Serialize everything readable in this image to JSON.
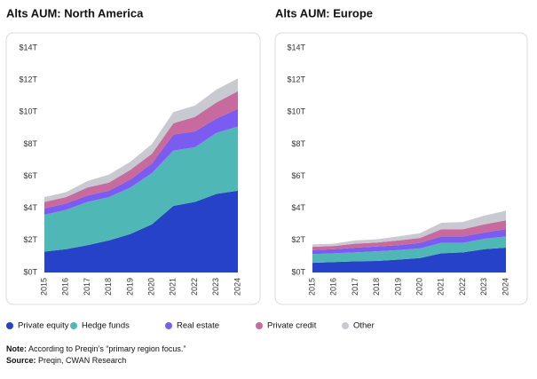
{
  "chart_data": [
    {
      "type": "stacked-area",
      "title": "Alts AUM: North America",
      "categories": [
        "2015",
        "2016",
        "2017",
        "2018",
        "2019",
        "2020",
        "2021",
        "2022",
        "2023",
        "2024"
      ],
      "ylim": [
        0,
        14
      ],
      "yticks": [
        {
          "value": 0,
          "label": "$0T"
        },
        {
          "value": 2,
          "label": "$2T"
        },
        {
          "value": 4,
          "label": "$4T"
        },
        {
          "value": 6,
          "label": "$6T"
        },
        {
          "value": 8,
          "label": "$8T"
        },
        {
          "value": 10,
          "label": "$10T"
        },
        {
          "value": 12,
          "label": "$12T"
        },
        {
          "value": 14,
          "label": "$14T"
        }
      ],
      "series": [
        {
          "name": "Private equity",
          "color": "#2542c8",
          "values": [
            1.3,
            1.45,
            1.7,
            2.0,
            2.4,
            3.0,
            4.15,
            4.4,
            4.9,
            5.1
          ]
        },
        {
          "name": "Hedge funds",
          "color": "#4fb8b6",
          "values": [
            2.3,
            2.45,
            2.7,
            2.7,
            2.9,
            3.2,
            3.45,
            3.4,
            3.8,
            4.0
          ]
        },
        {
          "name": "Real estate",
          "color": "#7b5cf0",
          "values": [
            0.4,
            0.4,
            0.4,
            0.4,
            0.5,
            0.6,
            1.0,
            1.0,
            0.9,
            1.1
          ]
        },
        {
          "name": "Private credit",
          "color": "#c86a9e",
          "values": [
            0.4,
            0.4,
            0.5,
            0.5,
            0.6,
            0.6,
            0.7,
            0.9,
            1.0,
            1.1
          ]
        },
        {
          "name": "Other",
          "color": "#c9c9d1",
          "values": [
            0.3,
            0.3,
            0.4,
            0.5,
            0.5,
            0.6,
            0.7,
            0.7,
            0.8,
            0.8
          ]
        }
      ]
    },
    {
      "type": "stacked-area",
      "title": "Alts AUM: Europe",
      "categories": [
        "2015",
        "2016",
        "2017",
        "2018",
        "2019",
        "2020",
        "2021",
        "2022",
        "2023",
        "2024"
      ],
      "ylim": [
        0,
        14
      ],
      "yticks": [
        {
          "value": 0,
          "label": "$0T"
        },
        {
          "value": 2,
          "label": "$2T"
        },
        {
          "value": 4,
          "label": "$4T"
        },
        {
          "value": 6,
          "label": "$6T"
        },
        {
          "value": 8,
          "label": "$8T"
        },
        {
          "value": 10,
          "label": "$10T"
        },
        {
          "value": 12,
          "label": "$12T"
        },
        {
          "value": 14,
          "label": "$14T"
        }
      ],
      "series": [
        {
          "name": "Private equity",
          "color": "#2542c8",
          "values": [
            0.6,
            0.65,
            0.7,
            0.72,
            0.8,
            0.9,
            1.2,
            1.25,
            1.45,
            1.55
          ]
        },
        {
          "name": "Hedge funds",
          "color": "#4fb8b6",
          "values": [
            0.55,
            0.55,
            0.55,
            0.6,
            0.6,
            0.6,
            0.65,
            0.6,
            0.65,
            0.7
          ]
        },
        {
          "name": "Real estate",
          "color": "#7b5cf0",
          "values": [
            0.25,
            0.25,
            0.3,
            0.3,
            0.3,
            0.35,
            0.4,
            0.4,
            0.4,
            0.45
          ]
        },
        {
          "name": "Private credit",
          "color": "#c86a9e",
          "values": [
            0.2,
            0.2,
            0.25,
            0.25,
            0.3,
            0.3,
            0.45,
            0.45,
            0.5,
            0.55
          ]
        },
        {
          "name": "Other",
          "color": "#c9c9d1",
          "values": [
            0.15,
            0.15,
            0.2,
            0.2,
            0.25,
            0.3,
            0.4,
            0.45,
            0.55,
            0.6
          ]
        }
      ]
    }
  ],
  "notes": {
    "note_label": "Note:",
    "note": "According to Preqin’s “primary region focus.”",
    "source_label": "Source:",
    "source": "Preqin, CWAN Research"
  }
}
